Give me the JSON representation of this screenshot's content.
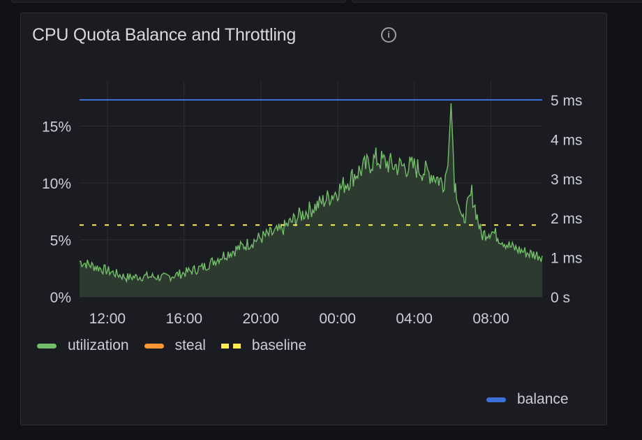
{
  "panel": {
    "title": "CPU Quota Balance and Throttling",
    "info_icon": "info-circle-icon"
  },
  "chart_data": {
    "type": "line",
    "title": "CPU Quota Balance and Throttling",
    "x_unit": "hours since 00:00 of day 1",
    "xlim": [
      10.55,
      34.67
    ],
    "x_ticks": [
      {
        "t": 12,
        "label": "12:00"
      },
      {
        "t": 16,
        "label": "16:00"
      },
      {
        "t": 20,
        "label": "20:00"
      },
      {
        "t": 24,
        "label": "00:00"
      },
      {
        "t": 28,
        "label": "04:00"
      },
      {
        "t": 32,
        "label": "08:00"
      }
    ],
    "y_left": {
      "unit": "%",
      "ylim": [
        0,
        17.4
      ],
      "ticks": [
        {
          "v": 0,
          "label": "0%"
        },
        {
          "v": 5,
          "label": "5%"
        },
        {
          "v": 10,
          "label": "10%"
        },
        {
          "v": 15,
          "label": "15%"
        }
      ]
    },
    "y_right": {
      "unit": "ms",
      "ylim": [
        0,
        5.0
      ],
      "ticks": [
        {
          "v": 0,
          "label": "0 s"
        },
        {
          "v": 1,
          "label": "1 ms"
        },
        {
          "v": 2,
          "label": "2 ms"
        },
        {
          "v": 3,
          "label": "3 ms"
        },
        {
          "v": 4,
          "label": "4 ms"
        },
        {
          "v": 5,
          "label": "5 ms"
        }
      ]
    },
    "grid": true,
    "series": [
      {
        "name": "utilization",
        "axis": "left",
        "color": "#73bf69",
        "fill": true,
        "t": [
          10.55,
          12,
          13,
          14,
          15,
          16,
          17,
          18,
          19,
          20,
          21,
          22,
          23,
          24,
          25,
          26,
          27,
          28,
          29,
          29.5,
          29.75,
          29.92,
          30.1,
          30.25,
          30.5,
          31,
          31.5,
          32,
          33,
          34,
          34.67
        ],
        "values": [
          3.1,
          2.3,
          1.7,
          1.8,
          1.7,
          2.1,
          2.6,
          3.6,
          4.4,
          5.2,
          5.8,
          7.1,
          8.1,
          9.3,
          10.9,
          12.1,
          11.5,
          11.4,
          10.7,
          10.0,
          11.5,
          17.0,
          10.1,
          9.0,
          6.4,
          9.1,
          5.4,
          5.8,
          4.4,
          3.8,
          3.6
        ]
      },
      {
        "name": "steal",
        "axis": "left",
        "color": "#ff9830",
        "t": [],
        "values": []
      },
      {
        "name": "baseline",
        "axis": "left",
        "color": "#ffee52",
        "dashed": true,
        "t": [
          10.55,
          34.67
        ],
        "values": [
          6.3,
          6.3
        ]
      },
      {
        "name": "balance",
        "axis": "right",
        "color": "#3d71d9",
        "t": [
          10.55,
          34.67
        ],
        "values": [
          5.0,
          5.0
        ]
      }
    ],
    "legend": {
      "placement": "bottom-left",
      "items": [
        "utilization",
        "steal",
        "baseline"
      ],
      "right_items": [
        "balance"
      ]
    }
  }
}
